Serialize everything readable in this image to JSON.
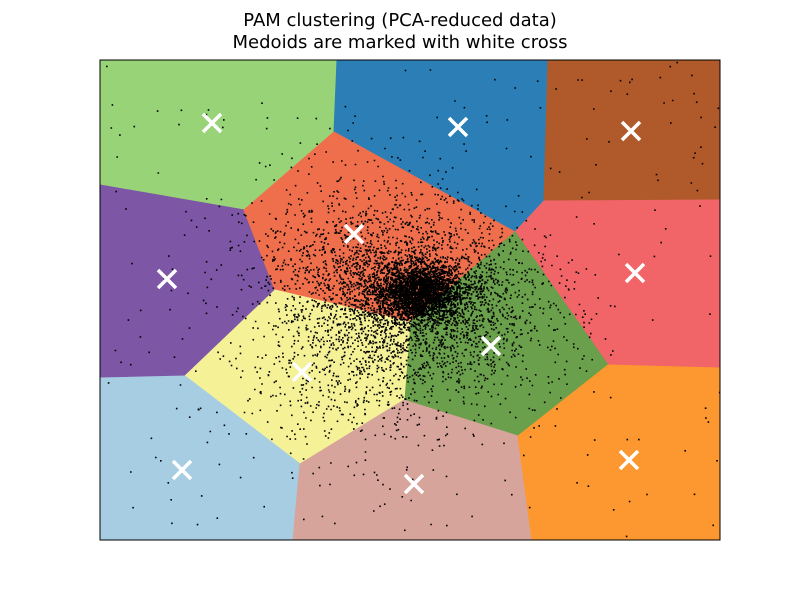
{
  "chart_data": {
    "type": "scatter",
    "title": "PAM clustering (PCA-reduced data)",
    "subtitle": "Medoids are marked with white cross",
    "xlabel": "",
    "ylabel": "",
    "grid": false,
    "legend": "none",
    "regions": [
      {
        "color": "#98d477",
        "polygon": [
          [
            0,
            0
          ],
          [
            237,
            0
          ],
          [
            234,
            72
          ],
          [
            144,
            150
          ],
          [
            0,
            125
          ]
        ]
      },
      {
        "color": "#2b7fb6",
        "polygon": [
          [
            237,
            0
          ],
          [
            448,
            0
          ],
          [
            444,
            141
          ],
          [
            415,
            172
          ],
          [
            234,
            72
          ]
        ]
      },
      {
        "color": "#b05a2b",
        "polygon": [
          [
            448,
            0
          ],
          [
            620,
            0
          ],
          [
            620,
            140
          ],
          [
            444,
            141
          ]
        ]
      },
      {
        "color": "#7d56a6",
        "polygon": [
          [
            0,
            125
          ],
          [
            144,
            150
          ],
          [
            175,
            230
          ],
          [
            85,
            316
          ],
          [
            0,
            318
          ]
        ]
      },
      {
        "color": "#ef6f4d",
        "polygon": [
          [
            144,
            150
          ],
          [
            234,
            72
          ],
          [
            415,
            172
          ],
          [
            310,
            262
          ],
          [
            175,
            230
          ]
        ]
      },
      {
        "color": "#f16568",
        "polygon": [
          [
            444,
            141
          ],
          [
            620,
            140
          ],
          [
            620,
            308
          ],
          [
            508,
            305
          ],
          [
            415,
            172
          ]
        ]
      },
      {
        "color": "#6a9f4b",
        "polygon": [
          [
            415,
            172
          ],
          [
            508,
            305
          ],
          [
            418,
            376
          ],
          [
            304,
            340
          ],
          [
            310,
            262
          ]
        ]
      },
      {
        "color": "#f4f197",
        "polygon": [
          [
            175,
            230
          ],
          [
            310,
            262
          ],
          [
            304,
            340
          ],
          [
            200,
            404
          ],
          [
            85,
            316
          ]
        ]
      },
      {
        "color": "#a6cde2",
        "polygon": [
          [
            0,
            318
          ],
          [
            85,
            316
          ],
          [
            200,
            404
          ],
          [
            193,
            480
          ],
          [
            0,
            480
          ]
        ]
      },
      {
        "color": "#d7a49b",
        "polygon": [
          [
            200,
            404
          ],
          [
            304,
            340
          ],
          [
            418,
            376
          ],
          [
            432,
            480
          ],
          [
            193,
            480
          ]
        ]
      },
      {
        "color": "#fd972f",
        "polygon": [
          [
            418,
            376
          ],
          [
            508,
            305
          ],
          [
            620,
            308
          ],
          [
            620,
            480
          ],
          [
            432,
            480
          ]
        ]
      }
    ],
    "medoids": [
      [
        112,
        63
      ],
      [
        358,
        67
      ],
      [
        531,
        71
      ],
      [
        67,
        219
      ],
      [
        254,
        174
      ],
      [
        535,
        213
      ],
      [
        391,
        286
      ],
      [
        202,
        312
      ],
      [
        82,
        410
      ],
      [
        314,
        424
      ],
      [
        529,
        400
      ]
    ],
    "points_note": ""
  }
}
